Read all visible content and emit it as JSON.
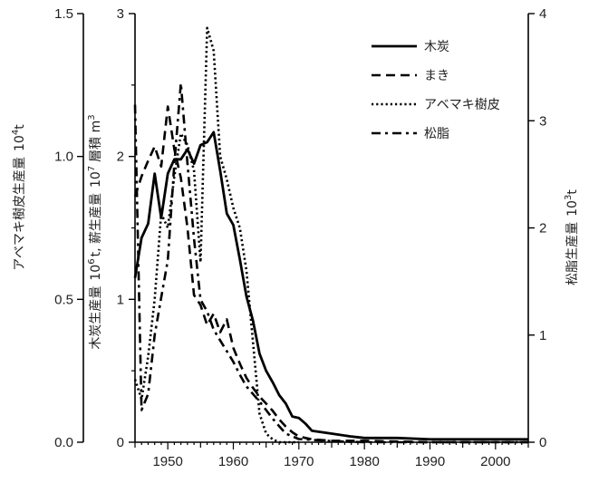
{
  "chart_data": {
    "type": "line",
    "x_ticks": [
      1950,
      1960,
      1970,
      1980,
      1990,
      2000
    ],
    "x_range": [
      1945,
      2005
    ],
    "axes": {
      "left_outer": {
        "title": "アベマキ樹皮生産量 10⁴t",
        "title_main": "アベマキ樹皮生産量",
        "title_unit": "10",
        "title_sup": "4",
        "title_tail": "t",
        "range": [
          0,
          1.5
        ],
        "tick_labels": [
          "0.0",
          "0.5",
          "1.0",
          "1.5"
        ]
      },
      "left_inner": {
        "title": "木炭生産量 10⁶ t, 薪生産量 10⁷ 層積 m³",
        "title_part1": "木炭生産量",
        "title_unit1": "10",
        "title_sup1": "6",
        "title_part2": "t, 薪生産量",
        "title_unit2": "10",
        "title_sup2": "7",
        "title_part3": "層積 m",
        "title_sup3": "3",
        "range": [
          0,
          3
        ],
        "tick_labels": [
          "0",
          "1",
          "2",
          "3"
        ]
      },
      "right": {
        "title": "松脂生産量 10³t",
        "title_main": "松脂生産量",
        "title_unit": "10",
        "title_sup": "3",
        "title_tail": "t",
        "range": [
          0,
          4
        ],
        "tick_labels": [
          "0",
          "1",
          "2",
          "3",
          "4"
        ]
      }
    },
    "series": [
      {
        "name": "木炭",
        "axis": "left_inner",
        "dash": "solid",
        "points": [
          [
            1945,
            1.15
          ],
          [
            1946,
            1.43
          ],
          [
            1947,
            1.53
          ],
          [
            1948,
            1.88
          ],
          [
            1949,
            1.57
          ],
          [
            1950,
            1.88
          ],
          [
            1951,
            1.98
          ],
          [
            1952,
            1.98
          ],
          [
            1953,
            2.05
          ],
          [
            1954,
            1.95
          ],
          [
            1955,
            2.08
          ],
          [
            1956,
            2.1
          ],
          [
            1957,
            2.17
          ],
          [
            1958,
            1.9
          ],
          [
            1959,
            1.6
          ],
          [
            1960,
            1.52
          ],
          [
            1961,
            1.28
          ],
          [
            1962,
            1.02
          ],
          [
            1963,
            0.85
          ],
          [
            1964,
            0.62
          ],
          [
            1965,
            0.5
          ],
          [
            1966,
            0.42
          ],
          [
            1967,
            0.33
          ],
          [
            1968,
            0.27
          ],
          [
            1969,
            0.18
          ],
          [
            1970,
            0.17
          ],
          [
            1971,
            0.13
          ],
          [
            1972,
            0.08
          ],
          [
            1975,
            0.06
          ],
          [
            1978,
            0.04
          ],
          [
            1980,
            0.03
          ],
          [
            1985,
            0.03
          ],
          [
            1990,
            0.02
          ],
          [
            1995,
            0.02
          ],
          [
            2000,
            0.02
          ],
          [
            2005,
            0.02
          ]
        ]
      },
      {
        "name": "まき",
        "axis": "left_inner",
        "dash": "dash",
        "points": [
          [
            1945,
            1.72
          ],
          [
            1946,
            1.86
          ],
          [
            1947,
            1.97
          ],
          [
            1948,
            2.07
          ],
          [
            1949,
            1.93
          ],
          [
            1950,
            2.35
          ],
          [
            1951,
            2.05
          ],
          [
            1952,
            1.85
          ],
          [
            1953,
            1.5
          ],
          [
            1954,
            1.03
          ],
          [
            1955,
            0.96
          ],
          [
            1956,
            0.82
          ],
          [
            1957,
            0.9
          ],
          [
            1958,
            0.77
          ],
          [
            1959,
            0.86
          ],
          [
            1960,
            0.66
          ],
          [
            1961,
            0.55
          ],
          [
            1962,
            0.45
          ],
          [
            1963,
            0.38
          ],
          [
            1964,
            0.32
          ],
          [
            1965,
            0.27
          ],
          [
            1966,
            0.22
          ],
          [
            1967,
            0.16
          ],
          [
            1968,
            0.11
          ],
          [
            1969,
            0.07
          ],
          [
            1970,
            0.04
          ],
          [
            1972,
            0.02
          ],
          [
            1975,
            0.01
          ],
          [
            1980,
            0.01
          ],
          [
            1990,
            0.0
          ],
          [
            2000,
            0.0
          ],
          [
            2005,
            0.0
          ]
        ]
      },
      {
        "name": "アベマキ樹皮",
        "axis": "left_outer",
        "dash": "dot",
        "points": [
          [
            1945,
            0.22
          ],
          [
            1946,
            0.15
          ],
          [
            1947,
            0.3
          ],
          [
            1948,
            0.5
          ],
          [
            1949,
            0.8
          ],
          [
            1950,
            0.75
          ],
          [
            1951,
            0.93
          ],
          [
            1952,
            1.08
          ],
          [
            1953,
            1.04
          ],
          [
            1954,
            0.95
          ],
          [
            1955,
            0.63
          ],
          [
            1956,
            1.45
          ],
          [
            1957,
            1.37
          ],
          [
            1958,
            1.0
          ],
          [
            1959,
            0.92
          ],
          [
            1960,
            0.82
          ],
          [
            1961,
            0.75
          ],
          [
            1962,
            0.6
          ],
          [
            1963,
            0.35
          ],
          [
            1964,
            0.1
          ],
          [
            1965,
            0.03
          ],
          [
            1966,
            0.01
          ],
          [
            1967,
            0.0
          ],
          [
            1970,
            0.0
          ]
        ]
      },
      {
        "name": "松脂",
        "axis": "right",
        "dash": "dashdot",
        "points": [
          [
            1945,
            3.15
          ],
          [
            1946,
            0.3
          ],
          [
            1947,
            0.45
          ],
          [
            1948,
            1.0
          ],
          [
            1949,
            1.35
          ],
          [
            1950,
            1.7
          ],
          [
            1951,
            2.6
          ],
          [
            1952,
            3.35
          ],
          [
            1953,
            2.6
          ],
          [
            1954,
            1.9
          ],
          [
            1955,
            1.33
          ],
          [
            1956,
            1.22
          ],
          [
            1957,
            1.05
          ],
          [
            1958,
            0.95
          ],
          [
            1959,
            0.85
          ],
          [
            1960,
            0.75
          ],
          [
            1961,
            0.63
          ],
          [
            1962,
            0.52
          ],
          [
            1963,
            0.45
          ],
          [
            1964,
            0.38
          ],
          [
            1965,
            0.3
          ],
          [
            1966,
            0.22
          ],
          [
            1967,
            0.15
          ],
          [
            1968,
            0.08
          ],
          [
            1970,
            0.03
          ],
          [
            1975,
            0.01
          ],
          [
            1980,
            0.0
          ],
          [
            1990,
            0.0
          ],
          [
            2000,
            0.0
          ],
          [
            2005,
            0.0
          ]
        ]
      }
    ],
    "legend_placement": "top-right",
    "grid": false
  }
}
